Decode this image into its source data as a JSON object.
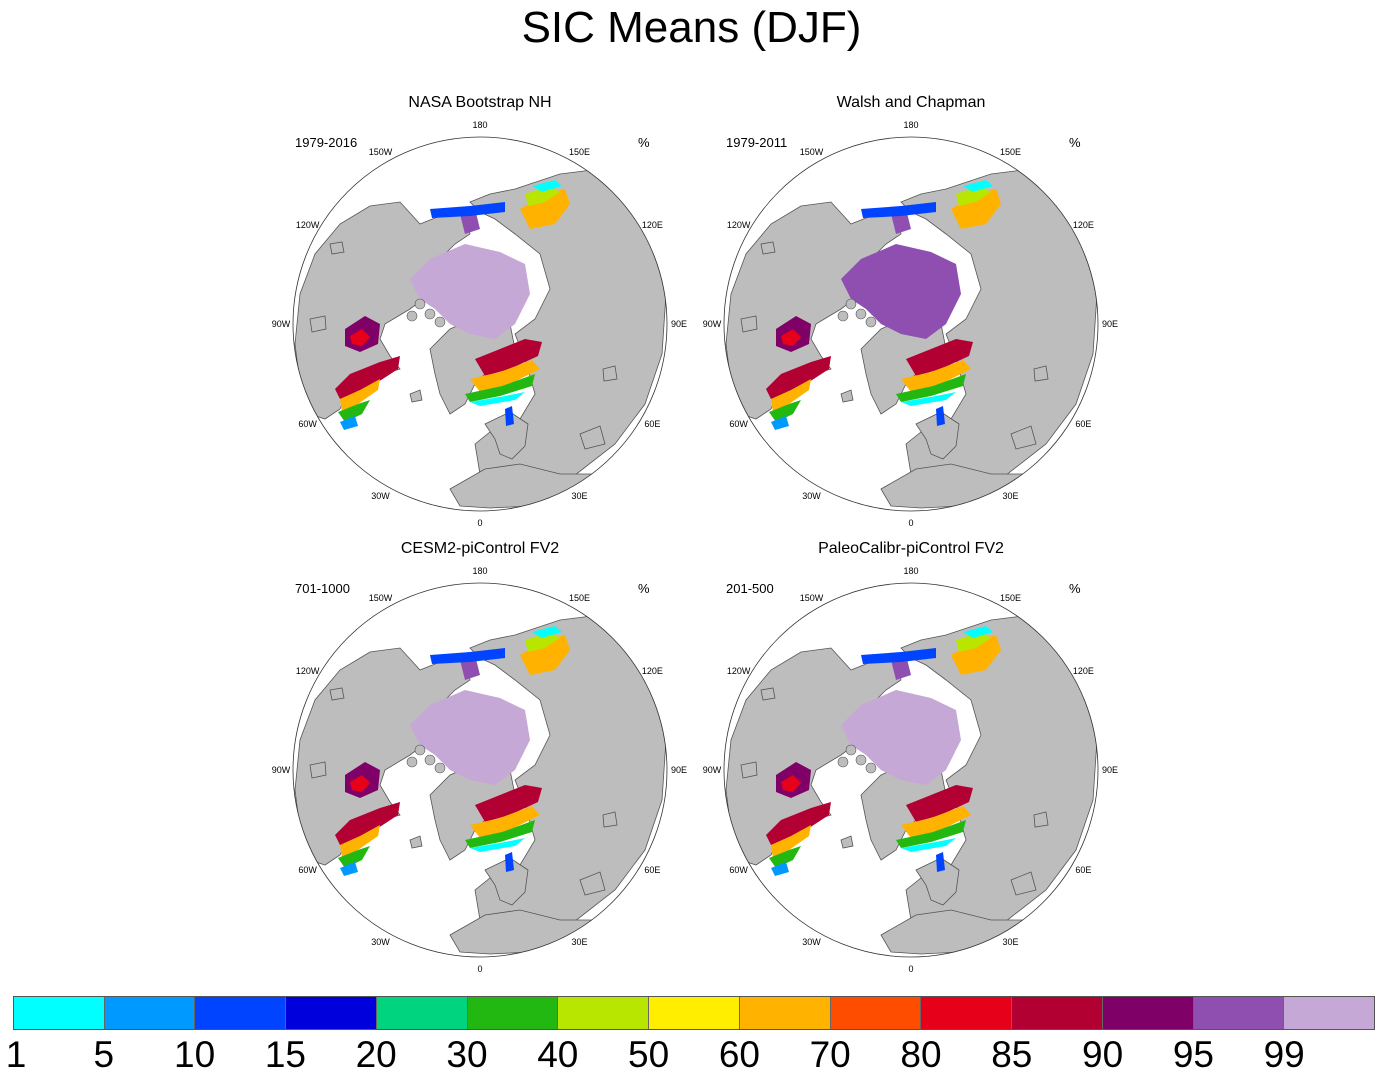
{
  "title": "SIC Means (DJF)",
  "unit": "%",
  "longitude_labels": [
    "180",
    "150E",
    "120E",
    "90E",
    "60E",
    "30E",
    "0",
    "30W",
    "60W",
    "90W",
    "120W",
    "150W"
  ],
  "panels": [
    {
      "title": "NASA Bootstrap NH",
      "period": "1979-2016"
    },
    {
      "title": "Walsh and Chapman",
      "period": "1979-2011"
    },
    {
      "title": "CESM2-piControl FV2",
      "period": "701-1000"
    },
    {
      "title": "PaleoCalibr-piControl FV2",
      "period": "201-500"
    }
  ],
  "colorbar": {
    "levels": [
      "1",
      "5",
      "10",
      "15",
      "20",
      "30",
      "40",
      "50",
      "60",
      "70",
      "80",
      "85",
      "90",
      "95",
      "99"
    ],
    "colors": [
      "#00ffff",
      "#0099ff",
      "#0044ff",
      "#0000dd",
      "#00d47f",
      "#22b811",
      "#b9e600",
      "#ffee00",
      "#ffb300",
      "#ff4d00",
      "#e6001a",
      "#b30033",
      "#7f0066",
      "#8f4fb0",
      "#c6a8d6"
    ]
  },
  "colors": {
    "land": "#bdbdbd",
    "ocean": "#ffffff",
    "coast": "#555555"
  }
}
